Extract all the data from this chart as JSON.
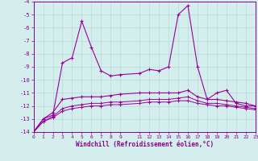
{
  "xlabel": "Windchill (Refroidissement éolien,°C)",
  "x_ticks": [
    0,
    1,
    2,
    3,
    4,
    5,
    6,
    7,
    8,
    9,
    11,
    12,
    13,
    14,
    15,
    16,
    17,
    18,
    19,
    20,
    21,
    22,
    23
  ],
  "ylim": [
    -14,
    -4
  ],
  "xlim": [
    0,
    23
  ],
  "yticks": [
    -14,
    -13,
    -12,
    -11,
    -10,
    -9,
    -8,
    -7,
    -6,
    -5,
    -4
  ],
  "background_color": "#d4eeee",
  "grid_color": "#b8dada",
  "line_color": "#990099",
  "series1_x": [
    0,
    1,
    2,
    3,
    4,
    5,
    6,
    7,
    8,
    9,
    11,
    12,
    13,
    14,
    15,
    16,
    17,
    18,
    19,
    20,
    21,
    22,
    23
  ],
  "series1_y": [
    -14,
    -13,
    -12.7,
    -8.7,
    -8.3,
    -5.5,
    -7.5,
    -9.3,
    -9.7,
    -9.6,
    -9.5,
    -9.2,
    -9.3,
    -9.0,
    -5.0,
    -4.3,
    -9.0,
    -11.5,
    -11.0,
    -10.8,
    -11.8,
    -12.0,
    -12.0
  ],
  "series2_x": [
    0,
    1,
    2,
    3,
    4,
    5,
    6,
    7,
    8,
    9,
    11,
    12,
    13,
    14,
    15,
    16,
    17,
    18,
    19,
    20,
    21,
    22,
    23
  ],
  "series2_y": [
    -14,
    -13,
    -12.5,
    -11.5,
    -11.4,
    -11.3,
    -11.3,
    -11.3,
    -11.2,
    -11.1,
    -11.0,
    -11.0,
    -11.0,
    -11.0,
    -11.0,
    -10.8,
    -11.3,
    -11.5,
    -11.5,
    -11.6,
    -11.7,
    -11.8,
    -12.0
  ],
  "series3_x": [
    0,
    1,
    2,
    3,
    4,
    5,
    6,
    7,
    8,
    9,
    11,
    12,
    13,
    14,
    15,
    16,
    17,
    18,
    19,
    20,
    21,
    22,
    23
  ],
  "series3_y": [
    -14,
    -13.2,
    -12.8,
    -12.2,
    -12.0,
    -11.9,
    -11.8,
    -11.8,
    -11.7,
    -11.7,
    -11.6,
    -11.5,
    -11.5,
    -11.5,
    -11.4,
    -11.3,
    -11.6,
    -11.8,
    -11.8,
    -11.9,
    -12.0,
    -12.1,
    -12.2
  ],
  "series4_x": [
    0,
    1,
    2,
    3,
    4,
    5,
    6,
    7,
    8,
    9,
    11,
    12,
    13,
    14,
    15,
    16,
    17,
    18,
    19,
    20,
    21,
    22,
    23
  ],
  "series4_y": [
    -14,
    -13.2,
    -12.9,
    -12.4,
    -12.2,
    -12.1,
    -12.0,
    -12.0,
    -11.9,
    -11.9,
    -11.8,
    -11.7,
    -11.7,
    -11.7,
    -11.6,
    -11.6,
    -11.8,
    -11.9,
    -12.0,
    -12.0,
    -12.1,
    -12.2,
    -12.3
  ]
}
